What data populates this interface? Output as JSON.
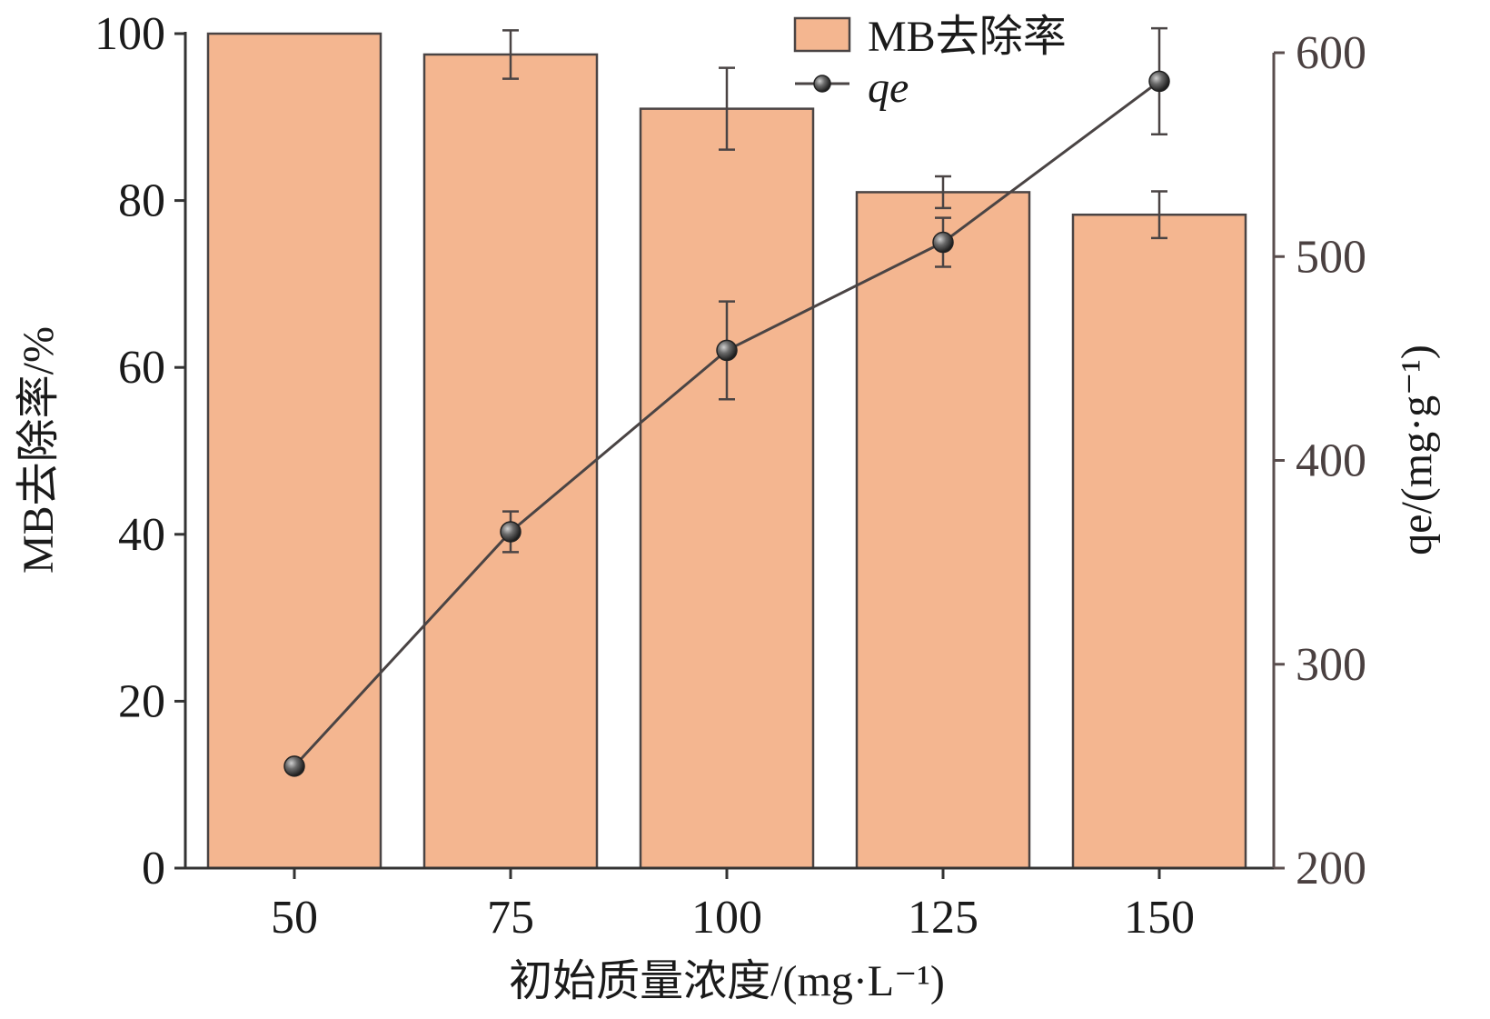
{
  "chart_data": {
    "type": "bar",
    "categories": [
      "50",
      "75",
      "100",
      "125",
      "150"
    ],
    "xlabel": "初始质量浓度/(mg·L⁻¹)",
    "ylabel": "MB去除率/%",
    "y2label": "qe/(mg·g⁻¹)",
    "ylim": [
      0,
      100
    ],
    "y2lim": [
      200,
      600
    ],
    "yticks": [
      "0",
      "20",
      "40",
      "60",
      "80",
      "100"
    ],
    "y2ticks": [
      "200",
      "300",
      "400",
      "500",
      "600"
    ],
    "grid": false,
    "legend_position": "top-right",
    "series": [
      {
        "name": "MB去除率",
        "type": "bar",
        "axis": "left",
        "values": [
          100,
          97.5,
          91,
          81,
          78.3
        ],
        "errors": [
          0,
          2.9,
          4.9,
          1.9,
          2.8
        ],
        "color": "#f4b690"
      },
      {
        "name": "qe",
        "type": "line",
        "axis": "right",
        "values": [
          250,
          365,
          454,
          507,
          586
        ],
        "errors": [
          0,
          10,
          24,
          12,
          26
        ],
        "color": "#4a4444"
      }
    ]
  }
}
